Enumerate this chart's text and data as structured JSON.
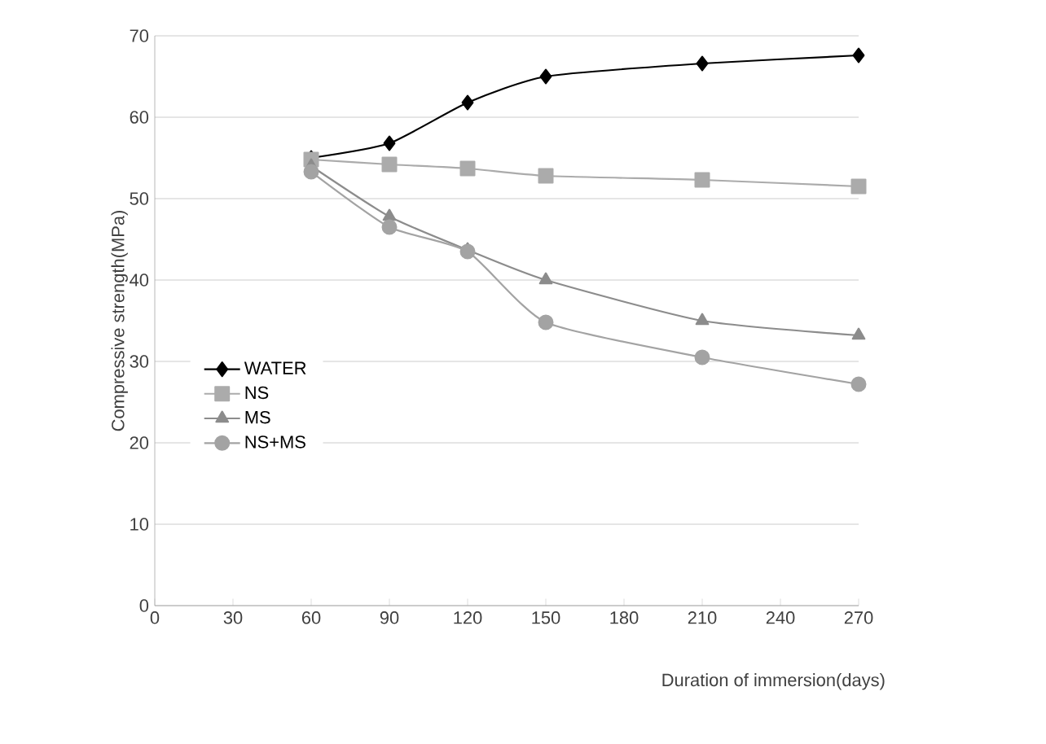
{
  "chart_data": {
    "type": "line",
    "xlabel": "Duration of immersion(days)",
    "ylabel": "Compressive strength(MPa)",
    "x": [
      60,
      90,
      120,
      150,
      210,
      270
    ],
    "series": [
      {
        "name": "WATER",
        "color": "#000000",
        "marker": "diamond",
        "values": [
          55,
          56.8,
          61.8,
          65,
          66.6,
          67.6
        ]
      },
      {
        "name": "NS",
        "color": "#ababab",
        "marker": "square",
        "values": [
          54.8,
          54.2,
          53.7,
          52.8,
          52.3,
          51.5
        ]
      },
      {
        "name": "MS",
        "color": "#8c8c8c",
        "marker": "triangle",
        "values": [
          54,
          47.8,
          43.7,
          40,
          35,
          33.2
        ]
      },
      {
        "name": "NS+MS",
        "color": "#a3a3a3",
        "marker": "circle",
        "values": [
          53.3,
          46.5,
          43.5,
          34.8,
          30.5,
          27.2
        ]
      }
    ],
    "xlim": [
      0,
      270
    ],
    "xticks": [
      0,
      30,
      60,
      90,
      120,
      150,
      180,
      210,
      240,
      270
    ],
    "ylim": [
      0,
      70
    ],
    "yticks": [
      0,
      10,
      20,
      30,
      40,
      50,
      60,
      70
    ],
    "grid": "y",
    "legend": "left",
    "line_style": "solid"
  }
}
